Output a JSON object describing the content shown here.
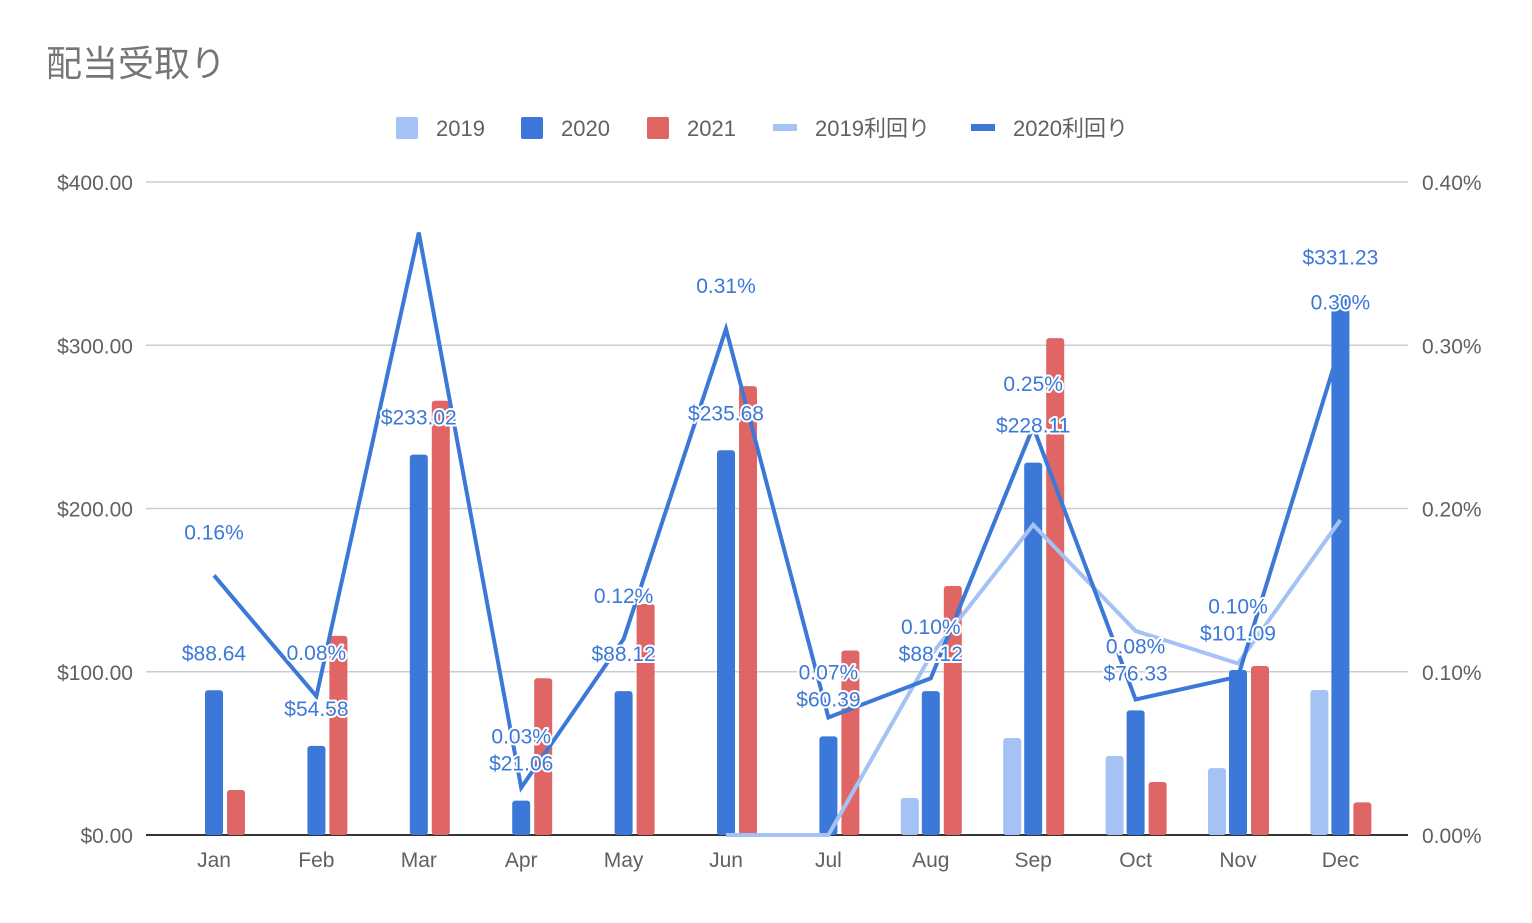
{
  "chart_data": {
    "type": "bar",
    "title": "配当受取り",
    "categories": [
      "Jan",
      "Feb",
      "Mar",
      "Apr",
      "May",
      "Jun",
      "Jul",
      "Aug",
      "Sep",
      "Oct",
      "Nov",
      "Dec"
    ],
    "y_left": {
      "min": 0,
      "max": 400,
      "ticks": [
        "$0.00",
        "$100.00",
        "$200.00",
        "$300.00",
        "$400.00"
      ]
    },
    "y_right": {
      "min": 0,
      "max": 0.4,
      "ticks": [
        "0.00%",
        "0.10%",
        "0.20%",
        "0.30%",
        "0.40%"
      ]
    },
    "grid": true,
    "legend_position": "top",
    "colors": {
      "2019": "#a4c2f4",
      "2020": "#3c78d8",
      "2021": "#e06666"
    },
    "series": [
      {
        "name": "2019",
        "kind": "bar",
        "axis": "left",
        "values": [
          0,
          0,
          0,
          0,
          0,
          0,
          0,
          22.7,
          59.4,
          48.4,
          41,
          88.8
        ]
      },
      {
        "name": "2020",
        "kind": "bar",
        "axis": "left",
        "values": [
          88.64,
          54.58,
          233.02,
          21.06,
          88.12,
          235.68,
          60.39,
          88.12,
          228.11,
          76.33,
          101.09,
          331.23
        ],
        "labels": [
          "$88.64",
          "$54.58",
          "$233.02",
          "$21.06",
          "$88.12",
          "$235.68",
          "$60.39",
          "$88.12",
          "$228.11",
          "$76.33",
          "$101.09",
          "$331.23"
        ]
      },
      {
        "name": "2021",
        "kind": "bar",
        "axis": "left",
        "values": [
          27.6,
          122,
          266,
          96,
          141.5,
          275,
          113,
          152.5,
          304.4,
          32.5,
          103.5,
          20
        ]
      },
      {
        "name": "2019利回り",
        "kind": "line",
        "axis": "right",
        "values": [
          null,
          null,
          null,
          null,
          null,
          0,
          0,
          0.11,
          0.19,
          0.125,
          0.105,
          0.193
        ]
      },
      {
        "name": "2020利回り",
        "kind": "line",
        "axis": "right",
        "values": [
          0.159,
          0.085,
          0.369,
          0.029,
          0.12,
          0.31,
          0.072,
          0.096,
          0.25,
          0.083,
          0.097,
          0.3
        ],
        "labels": [
          "0.16%",
          "0.08%",
          null,
          "0.03%",
          "0.12%",
          "0.31%",
          "0.07%",
          "0.10%",
          "0.25%",
          "0.08%",
          "0.10%",
          "0.30%"
        ]
      }
    ]
  }
}
